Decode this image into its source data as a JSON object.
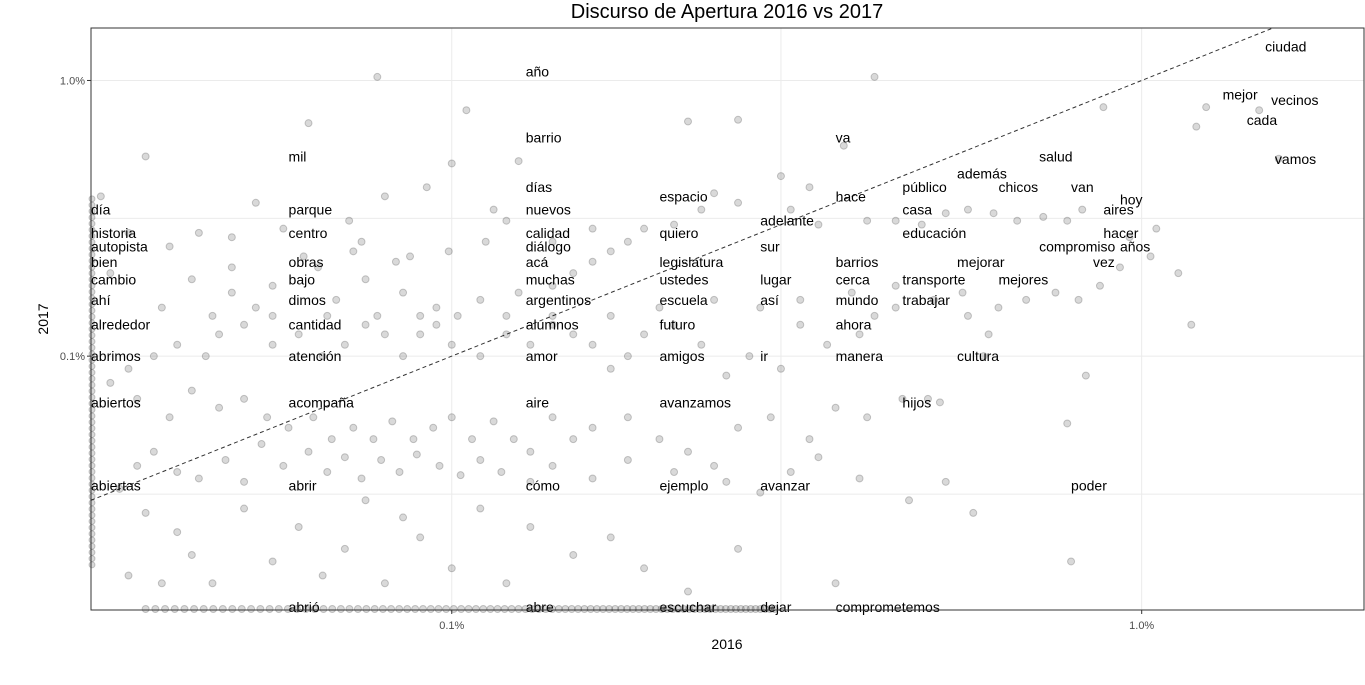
{
  "chart_data": {
    "type": "scatter",
    "title": "Discurso de Apertura 2016 vs 2017",
    "xlabel": "2016",
    "ylabel": "2017",
    "scale": "log10",
    "xlim": [
      0.0003,
      0.021
    ],
    "ylim": [
      0.00012,
      0.0155
    ],
    "x_ticks": [
      {
        "value": 0.001,
        "label": "0.1%"
      },
      {
        "value": 0.01,
        "label": "1.0%"
      }
    ],
    "y_ticks": [
      {
        "value": 0.001,
        "label": "0.1%"
      },
      {
        "value": 0.01,
        "label": "1.0%"
      }
    ],
    "grid": true,
    "reference_line": "y = x",
    "labeled_points": [
      {
        "word": "ciudad",
        "x": 0.0151,
        "y": 0.0133
      },
      {
        "word": "mejor",
        "x": 0.0131,
        "y": 0.0089
      },
      {
        "word": "vecinos",
        "x": 0.0154,
        "y": 0.0085
      },
      {
        "word": "cada",
        "x": 0.0142,
        "y": 0.0072
      },
      {
        "word": "vamos",
        "x": 0.0156,
        "y": 0.0052
      },
      {
        "word": "año",
        "x": 0.00128,
        "y": 0.0108
      },
      {
        "word": "barrio",
        "x": 0.00128,
        "y": 0.0062
      },
      {
        "word": "va",
        "x": 0.0036,
        "y": 0.0062
      },
      {
        "word": "mil",
        "x": 0.00058,
        "y": 0.0053
      },
      {
        "word": "salud",
        "x": 0.0071,
        "y": 0.0053
      },
      {
        "word": "además",
        "x": 0.0054,
        "y": 0.0046
      },
      {
        "word": "días",
        "x": 0.00128,
        "y": 0.0041
      },
      {
        "word": "público",
        "x": 0.0045,
        "y": 0.0041
      },
      {
        "word": "chicos",
        "x": 0.0062,
        "y": 0.0041
      },
      {
        "word": "van",
        "x": 0.0079,
        "y": 0.0041
      },
      {
        "word": "espacio",
        "x": 0.002,
        "y": 0.0038
      },
      {
        "word": "hace",
        "x": 0.0036,
        "y": 0.0038
      },
      {
        "word": "hoy",
        "x": 0.0093,
        "y": 0.0037
      },
      {
        "word": "día",
        "x": 0.0003,
        "y": 0.0034
      },
      {
        "word": "parque",
        "x": 0.00058,
        "y": 0.0034
      },
      {
        "word": "nuevos",
        "x": 0.00128,
        "y": 0.0034
      },
      {
        "word": "casa",
        "x": 0.0045,
        "y": 0.0034
      },
      {
        "word": "aires",
        "x": 0.0088,
        "y": 0.0034
      },
      {
        "word": "adelante",
        "x": 0.0028,
        "y": 0.0031
      },
      {
        "word": "historia",
        "x": 0.0003,
        "y": 0.0028
      },
      {
        "word": "centro",
        "x": 0.00058,
        "y": 0.0028
      },
      {
        "word": "calidad",
        "x": 0.00128,
        "y": 0.0028
      },
      {
        "word": "quiero",
        "x": 0.002,
        "y": 0.0028
      },
      {
        "word": "educación",
        "x": 0.0045,
        "y": 0.0028
      },
      {
        "word": "hacer",
        "x": 0.0088,
        "y": 0.0028
      },
      {
        "word": "autopista",
        "x": 0.0003,
        "y": 0.0025
      },
      {
        "word": "diálogo",
        "x": 0.00128,
        "y": 0.0025
      },
      {
        "word": "sur",
        "x": 0.0028,
        "y": 0.0025
      },
      {
        "word": "compromiso",
        "x": 0.0071,
        "y": 0.0025
      },
      {
        "word": "años",
        "x": 0.0093,
        "y": 0.0025
      },
      {
        "word": "bien",
        "x": 0.0003,
        "y": 0.0022
      },
      {
        "word": "obras",
        "x": 0.00058,
        "y": 0.0022
      },
      {
        "word": "acá",
        "x": 0.00128,
        "y": 0.0022
      },
      {
        "word": "legislatura",
        "x": 0.002,
        "y": 0.0022
      },
      {
        "word": "barrios",
        "x": 0.0036,
        "y": 0.0022
      },
      {
        "word": "mejorar",
        "x": 0.0054,
        "y": 0.0022
      },
      {
        "word": "vez",
        "x": 0.0085,
        "y": 0.0022
      },
      {
        "word": "cambio",
        "x": 0.0003,
        "y": 0.0019
      },
      {
        "word": "bajo",
        "x": 0.00058,
        "y": 0.0019
      },
      {
        "word": "muchas",
        "x": 0.00128,
        "y": 0.0019
      },
      {
        "word": "ustedes",
        "x": 0.002,
        "y": 0.0019
      },
      {
        "word": "lugar",
        "x": 0.0028,
        "y": 0.0019
      },
      {
        "word": "cerca",
        "x": 0.0036,
        "y": 0.0019
      },
      {
        "word": "transporte",
        "x": 0.0045,
        "y": 0.0019
      },
      {
        "word": "mejores",
        "x": 0.0062,
        "y": 0.0019
      },
      {
        "word": "ahí",
        "x": 0.0003,
        "y": 0.0016
      },
      {
        "word": "dimos",
        "x": 0.00058,
        "y": 0.0016
      },
      {
        "word": "argentinos",
        "x": 0.00128,
        "y": 0.0016
      },
      {
        "word": "escuela",
        "x": 0.002,
        "y": 0.0016
      },
      {
        "word": "así",
        "x": 0.0028,
        "y": 0.0016
      },
      {
        "word": "mundo",
        "x": 0.0036,
        "y": 0.0016
      },
      {
        "word": "trabajar",
        "x": 0.0045,
        "y": 0.0016
      },
      {
        "word": "alrededor",
        "x": 0.0003,
        "y": 0.0013
      },
      {
        "word": "cantidad",
        "x": 0.00058,
        "y": 0.0013
      },
      {
        "word": "alumnos",
        "x": 0.00128,
        "y": 0.0013
      },
      {
        "word": "futuro",
        "x": 0.002,
        "y": 0.0013
      },
      {
        "word": "ahora",
        "x": 0.0036,
        "y": 0.0013
      },
      {
        "word": "abrimos",
        "x": 0.0003,
        "y": 0.001
      },
      {
        "word": "atención",
        "x": 0.00058,
        "y": 0.001
      },
      {
        "word": "amor",
        "x": 0.00128,
        "y": 0.001
      },
      {
        "word": "amigos",
        "x": 0.002,
        "y": 0.001
      },
      {
        "word": "ir",
        "x": 0.0028,
        "y": 0.001
      },
      {
        "word": "manera",
        "x": 0.0036,
        "y": 0.001
      },
      {
        "word": "cultura",
        "x": 0.0054,
        "y": 0.001
      },
      {
        "word": "abiertos",
        "x": 0.0003,
        "y": 0.00068
      },
      {
        "word": "acompaña",
        "x": 0.00058,
        "y": 0.00068
      },
      {
        "word": "aire",
        "x": 0.00128,
        "y": 0.00068
      },
      {
        "word": "avanzamos",
        "x": 0.002,
        "y": 0.00068
      },
      {
        "word": "hijos",
        "x": 0.0045,
        "y": 0.00068
      },
      {
        "word": "abiertas",
        "x": 0.0003,
        "y": 0.00034
      },
      {
        "word": "abrir",
        "x": 0.00058,
        "y": 0.00034
      },
      {
        "word": "cómo",
        "x": 0.00128,
        "y": 0.00034
      },
      {
        "word": "ejemplo",
        "x": 0.002,
        "y": 0.00034
      },
      {
        "word": "avanzar",
        "x": 0.0028,
        "y": 0.00034
      },
      {
        "word": "poder",
        "x": 0.0079,
        "y": 0.00034
      },
      {
        "word": "abrió",
        "x": 0.00058,
        "y": 0.00012
      },
      {
        "word": "abre",
        "x": 0.00128,
        "y": 0.00012
      },
      {
        "word": "escuchar",
        "x": 0.002,
        "y": 0.00012
      },
      {
        "word": "dejar",
        "x": 0.0028,
        "y": 0.00012
      },
      {
        "word": "comprometemos",
        "x": 0.0036,
        "y": 0.00012
      }
    ],
    "background_points": [
      [
        0.00078,
        0.0103
      ],
      [
        0.00105,
        0.0078
      ],
      [
        0.00062,
        0.007
      ],
      [
        0.00036,
        0.0053
      ],
      [
        0.00125,
        0.0051
      ],
      [
        0.001,
        0.005
      ],
      [
        0.00092,
        0.0041
      ],
      [
        0.0008,
        0.0038
      ],
      [
        0.00052,
        0.0036
      ],
      [
        0.00071,
        0.0031
      ],
      [
        0.00115,
        0.0034
      ],
      [
        0.0012,
        0.0031
      ],
      [
        0.00043,
        0.0028
      ],
      [
        0.00048,
        0.0027
      ],
      [
        0.00057,
        0.0029
      ],
      [
        0.00072,
        0.0024
      ],
      [
        0.00083,
        0.0022
      ],
      [
        0.00075,
        0.0019
      ],
      [
        0.00064,
        0.0021
      ],
      [
        0.00055,
        0.0018
      ],
      [
        0.00048,
        0.0017
      ],
      [
        0.00042,
        0.0019
      ],
      [
        0.00038,
        0.0015
      ],
      [
        0.00052,
        0.0015
      ],
      [
        0.00068,
        0.0016
      ],
      [
        0.00085,
        0.0017
      ],
      [
        0.00095,
        0.0015
      ],
      [
        0.0011,
        0.0016
      ],
      [
        0.00125,
        0.0017
      ],
      [
        0.0014,
        0.0018
      ],
      [
        0.0015,
        0.002
      ],
      [
        0.0016,
        0.0022
      ],
      [
        0.0017,
        0.0024
      ],
      [
        0.0018,
        0.0026
      ],
      [
        0.0019,
        0.0029
      ],
      [
        0.0021,
        0.003
      ],
      [
        0.0023,
        0.0034
      ],
      [
        0.0024,
        0.0039
      ],
      [
        0.0026,
        0.0036
      ],
      [
        0.003,
        0.0045
      ],
      [
        0.0033,
        0.0041
      ],
      [
        0.0037,
        0.0058
      ],
      [
        0.0041,
        0.0103
      ],
      [
        0.0022,
        0.0071
      ],
      [
        0.0026,
        0.0072
      ],
      [
        0.0031,
        0.0034
      ],
      [
        0.0034,
        0.003
      ],
      [
        0.004,
        0.0031
      ],
      [
        0.0044,
        0.0031
      ],
      [
        0.0048,
        0.003
      ],
      [
        0.0052,
        0.0033
      ],
      [
        0.0056,
        0.0034
      ],
      [
        0.0061,
        0.0033
      ],
      [
        0.0066,
        0.0031
      ],
      [
        0.0072,
        0.0032
      ],
      [
        0.0078,
        0.0031
      ],
      [
        0.0082,
        0.0034
      ],
      [
        0.0096,
        0.0027
      ],
      [
        0.0105,
        0.0029
      ],
      [
        0.0113,
        0.002
      ],
      [
        0.012,
        0.0068
      ],
      [
        0.0124,
        0.008
      ],
      [
        0.0148,
        0.0078
      ],
      [
        0.0158,
        0.0052
      ],
      [
        0.0118,
        0.0013
      ],
      [
        0.0088,
        0.008
      ],
      [
        0.0083,
        0.00085
      ],
      [
        0.0078,
        0.00057
      ],
      [
        0.0059,
        0.001
      ],
      [
        0.006,
        0.0012
      ],
      [
        0.0056,
        0.0014
      ],
      [
        0.0051,
        0.00068
      ],
      [
        0.0049,
        0.0007
      ],
      [
        0.0044,
        0.0015
      ],
      [
        0.0041,
        0.0014
      ],
      [
        0.0039,
        0.0012
      ],
      [
        0.0035,
        0.0011
      ],
      [
        0.0032,
        0.0013
      ],
      [
        0.003,
        0.0009
      ],
      [
        0.0027,
        0.001
      ],
      [
        0.0025,
        0.00085
      ],
      [
        0.0023,
        0.0011
      ],
      [
        0.0021,
        0.0013
      ],
      [
        0.0019,
        0.0012
      ],
      [
        0.0018,
        0.001
      ],
      [
        0.0017,
        0.0009
      ],
      [
        0.0016,
        0.0011
      ],
      [
        0.0015,
        0.0012
      ],
      [
        0.0014,
        0.0013
      ],
      [
        0.0013,
        0.0011
      ],
      [
        0.0012,
        0.0012
      ],
      [
        0.0011,
        0.001
      ],
      [
        0.001,
        0.0011
      ],
      [
        0.00095,
        0.0013
      ],
      [
        0.0009,
        0.0012
      ],
      [
        0.00085,
        0.001
      ],
      [
        0.0008,
        0.0012
      ],
      [
        0.00075,
        0.0013
      ],
      [
        0.0007,
        0.0011
      ],
      [
        0.00065,
        0.001
      ],
      [
        0.0006,
        0.0012
      ],
      [
        0.00055,
        0.0011
      ],
      [
        0.0005,
        0.0013
      ],
      [
        0.00046,
        0.0012
      ],
      [
        0.00044,
        0.001
      ],
      [
        0.0004,
        0.0011
      ],
      [
        0.00037,
        0.001
      ],
      [
        0.00034,
        0.0009
      ],
      [
        0.00032,
        0.0008
      ],
      [
        0.00035,
        0.0007
      ],
      [
        0.00039,
        0.0006
      ],
      [
        0.00042,
        0.00075
      ],
      [
        0.00046,
        0.00065
      ],
      [
        0.0005,
        0.0007
      ],
      [
        0.00054,
        0.0006
      ],
      [
        0.00058,
        0.00055
      ],
      [
        0.00063,
        0.0006
      ],
      [
        0.00067,
        0.0005
      ],
      [
        0.00072,
        0.00055
      ],
      [
        0.00077,
        0.0005
      ],
      [
        0.00082,
        0.00058
      ],
      [
        0.00088,
        0.0005
      ],
      [
        0.00094,
        0.00055
      ],
      [
        0.001,
        0.0006
      ],
      [
        0.00107,
        0.0005
      ],
      [
        0.00115,
        0.00058
      ],
      [
        0.00123,
        0.0005
      ],
      [
        0.0013,
        0.00045
      ],
      [
        0.0014,
        0.0006
      ],
      [
        0.0015,
        0.0005
      ],
      [
        0.0016,
        0.00055
      ],
      [
        0.0018,
        0.0006
      ],
      [
        0.002,
        0.0005
      ],
      [
        0.0022,
        0.00045
      ],
      [
        0.0024,
        0.0004
      ],
      [
        0.0026,
        0.00055
      ],
      [
        0.0029,
        0.0006
      ],
      [
        0.0033,
        0.0005
      ],
      [
        0.0036,
        0.00065
      ],
      [
        0.004,
        0.0006
      ],
      [
        0.0045,
        0.0007
      ],
      [
        0.0052,
        0.00035
      ],
      [
        0.0057,
        0.00027
      ],
      [
        0.0079,
        0.00018
      ],
      [
        0.0036,
        0.00015
      ],
      [
        0.0026,
        0.0002
      ],
      [
        0.0022,
        0.00014
      ],
      [
        0.0019,
        0.00017
      ],
      [
        0.0017,
        0.00022
      ],
      [
        0.0015,
        0.00019
      ],
      [
        0.0013,
        0.00024
      ],
      [
        0.0012,
        0.00015
      ],
      [
        0.0011,
        0.00028
      ],
      [
        0.001,
        0.00017
      ],
      [
        0.0009,
        0.00022
      ],
      [
        0.00085,
        0.00026
      ],
      [
        0.0008,
        0.00015
      ],
      [
        0.00075,
        0.0003
      ],
      [
        0.0007,
        0.0002
      ],
      [
        0.00065,
        0.00016
      ],
      [
        0.0006,
        0.00024
      ],
      [
        0.00055,
        0.00018
      ],
      [
        0.0005,
        0.00028
      ],
      [
        0.00045,
        0.00015
      ],
      [
        0.00042,
        0.00019
      ],
      [
        0.0004,
        0.00023
      ],
      [
        0.00038,
        0.00015
      ],
      [
        0.00036,
        0.00027
      ],
      [
        0.00034,
        0.00016
      ],
      [
        0.00033,
        0.00033
      ],
      [
        0.00035,
        0.0004
      ],
      [
        0.00037,
        0.00045
      ],
      [
        0.0004,
        0.00038
      ],
      [
        0.00043,
        0.00036
      ],
      [
        0.00047,
        0.00042
      ],
      [
        0.0005,
        0.00035
      ],
      [
        0.00053,
        0.00048
      ],
      [
        0.00057,
        0.0004
      ],
      [
        0.00062,
        0.00045
      ],
      [
        0.00066,
        0.00038
      ],
      [
        0.0007,
        0.00043
      ],
      [
        0.00074,
        0.00036
      ],
      [
        0.00079,
        0.00042
      ],
      [
        0.00084,
        0.00038
      ],
      [
        0.00089,
        0.00044
      ],
      [
        0.00096,
        0.0004
      ],
      [
        0.00103,
        0.00037
      ],
      [
        0.0011,
        0.00042
      ],
      [
        0.00118,
        0.00038
      ],
      [
        0.0013,
        0.00035
      ],
      [
        0.0014,
        0.0004
      ],
      [
        0.0016,
        0.00036
      ],
      [
        0.0018,
        0.00042
      ],
      [
        0.0021,
        0.00038
      ],
      [
        0.0025,
        0.00035
      ],
      [
        0.0028,
        0.00032
      ],
      [
        0.0031,
        0.00038
      ],
      [
        0.0034,
        0.00043
      ],
      [
        0.0039,
        0.00036
      ],
      [
        0.0046,
        0.0003
      ],
      [
        0.00048,
        0.0021
      ],
      [
        0.00061,
        0.0023
      ],
      [
        0.00074,
        0.0026
      ],
      [
        0.00087,
        0.0023
      ],
      [
        0.00099,
        0.0024
      ],
      [
        0.00112,
        0.0026
      ],
      [
        0.0014,
        0.0026
      ],
      [
        0.0016,
        0.0029
      ],
      [
        0.00039,
        0.0025
      ],
      [
        0.00034,
        0.0028
      ],
      [
        0.00031,
        0.0038
      ],
      [
        0.00032,
        0.002
      ],
      [
        0.00045,
        0.0014
      ],
      [
        0.00055,
        0.0014
      ],
      [
        0.00066,
        0.0014
      ],
      [
        0.00078,
        0.0014
      ],
      [
        0.0009,
        0.0014
      ],
      [
        0.00102,
        0.0014
      ],
      [
        0.0012,
        0.0014
      ],
      [
        0.0014,
        0.0014
      ],
      [
        0.0017,
        0.0014
      ],
      [
        0.002,
        0.0015
      ],
      [
        0.0024,
        0.0016
      ],
      [
        0.0028,
        0.0015
      ],
      [
        0.0032,
        0.0016
      ],
      [
        0.0038,
        0.0017
      ],
      [
        0.0044,
        0.0018
      ],
      [
        0.005,
        0.0016
      ],
      [
        0.0055,
        0.0017
      ],
      [
        0.0062,
        0.0015
      ],
      [
        0.0068,
        0.0016
      ],
      [
        0.0075,
        0.0017
      ],
      [
        0.0081,
        0.0016
      ],
      [
        0.0087,
        0.0018
      ],
      [
        0.0093,
        0.0021
      ],
      [
        0.0103,
        0.0023
      ]
    ]
  }
}
